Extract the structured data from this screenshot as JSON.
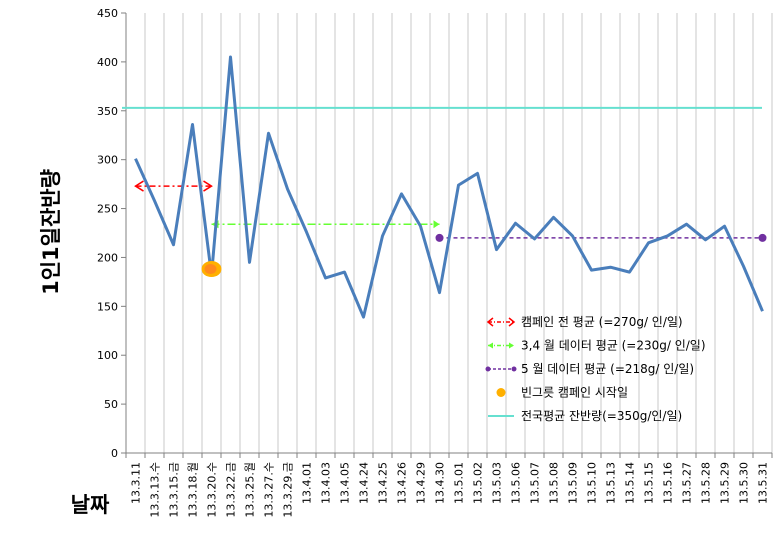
{
  "chart_data": {
    "type": "line",
    "xlabel": "날짜",
    "ylabel": "1인1일잔반량",
    "ylim": [
      0,
      450
    ],
    "yticks": [
      0,
      50,
      100,
      150,
      200,
      250,
      300,
      350,
      400,
      450
    ],
    "grid": "vertical",
    "legend_position": "bottom-right",
    "categories": [
      "13.3.11",
      "13.3.13.수",
      "13.3.15.금",
      "13.3.18.월",
      "13.3.20.수",
      "13.3.22.금",
      "13.3.25.월",
      "13.3.27.수",
      "13.3.29.금",
      "13.4.01",
      "13.4.03",
      "13.4.05",
      "13.4.24",
      "13.4.25",
      "13.4.26",
      "13.4.29",
      "13.4.30",
      "13.5.01",
      "13.5.02",
      "13.5.03",
      "13.5.06",
      "13.5.07",
      "13.5.08",
      "13.5.09",
      "13.5.10",
      "13.5.13",
      "13.5.14",
      "13.5.15",
      "13.5.16",
      "13.5.27",
      "13.5.28",
      "13.5.29",
      "13.5.30",
      "13.5.31"
    ],
    "series": [
      {
        "values": [
          301,
          258,
          213,
          336,
          182,
          405,
          195,
          327,
          270,
          226,
          179,
          185,
          139,
          222,
          265,
          232,
          164,
          274,
          286,
          208,
          235,
          219,
          241,
          222,
          187,
          190,
          185,
          215,
          222,
          234,
          218,
          232,
          191,
          145
        ],
        "color": "#4a7ebb",
        "style": "line"
      }
    ],
    "annotations": [
      {
        "legend": "캠페인 전 평균 (=270g/ 인/일)",
        "value": 273,
        "from": 0,
        "to": 4,
        "color": "#ff0000",
        "style": "dash-dot-double-arrow"
      },
      {
        "legend": "3,4 월 데이터 평균 (=230g/ 인/일)",
        "value": 234,
        "from": 4,
        "to": 16,
        "color": "#66ff33",
        "style": "dash-dot-arrow"
      },
      {
        "legend": "5 월 데이터 평균 (=218g/ 인/일)",
        "value": 220,
        "from": 16,
        "to": 33,
        "color": "#7030a0",
        "style": "dashed-dot-ends"
      },
      {
        "legend": "빈그릇 캠페인 시작일",
        "value": 182,
        "index": 4,
        "color": "#ffb000",
        "style": "marker"
      },
      {
        "legend": "전국평균 잔반량(=350g/인/일)",
        "value": 353,
        "from": 0,
        "to": 33,
        "color": "#66e0d0",
        "style": "line"
      }
    ]
  }
}
